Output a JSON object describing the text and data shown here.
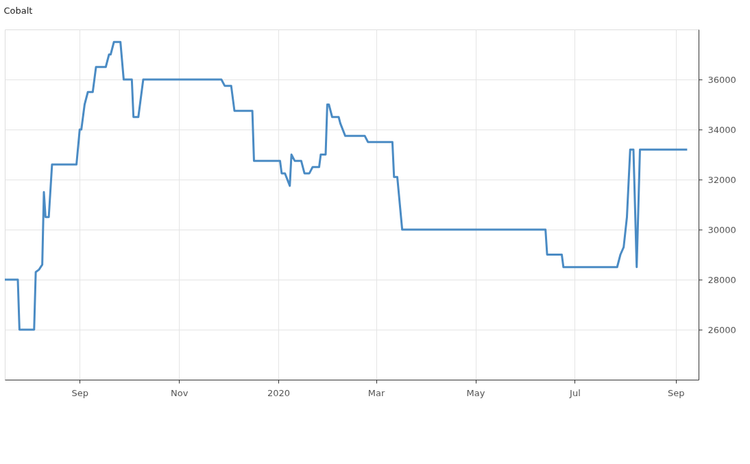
{
  "chart_data": {
    "type": "line",
    "title": "Cobalt",
    "x": [
      "2019-07-17",
      "2019-07-25",
      "2019-07-26",
      "2019-08-04",
      "2019-08-05",
      "2019-08-07",
      "2019-08-09",
      "2019-08-10",
      "2019-08-11",
      "2019-08-13",
      "2019-08-15",
      "2019-08-30",
      "2019-09-01",
      "2019-09-02",
      "2019-09-04",
      "2019-09-06",
      "2019-09-09",
      "2019-09-11",
      "2019-09-17",
      "2019-09-19",
      "2019-09-20",
      "2019-09-22",
      "2019-09-26",
      "2019-09-28",
      "2019-10-03",
      "2019-10-04",
      "2019-10-07",
      "2019-10-10",
      "2019-11-27",
      "2019-11-29",
      "2019-12-03",
      "2019-12-05",
      "2019-12-16",
      "2019-12-17",
      "2020-01-02",
      "2020-01-03",
      "2020-01-05",
      "2020-01-08",
      "2020-01-09",
      "2020-01-11",
      "2020-01-15",
      "2020-01-17",
      "2020-01-20",
      "2020-01-22",
      "2020-01-26",
      "2020-01-27",
      "2020-01-30",
      "2020-01-31",
      "2020-02-01",
      "2020-02-03",
      "2020-02-07",
      "2020-02-08",
      "2020-02-11",
      "2020-02-23",
      "2020-02-25",
      "2020-03-11",
      "2020-03-12",
      "2020-03-14",
      "2020-03-17",
      "2020-06-13",
      "2020-06-14",
      "2020-06-23",
      "2020-06-24",
      "2020-07-27",
      "2020-07-29",
      "2020-07-31",
      "2020-08-02",
      "2020-08-04",
      "2020-08-06",
      "2020-08-08",
      "2020-08-10",
      "2020-09-08"
    ],
    "series": [
      {
        "color": "#4a8bc4",
        "values": [
          28000,
          28000,
          26000,
          26000,
          28300,
          28400,
          28600,
          31500,
          30500,
          30500,
          32600,
          32600,
          34000,
          34000,
          35000,
          35500,
          35500,
          36500,
          36500,
          37000,
          37000,
          37500,
          37500,
          36000,
          36000,
          34500,
          34500,
          36000,
          36000,
          35750,
          35750,
          34750,
          34750,
          32750,
          32750,
          32250,
          32250,
          31750,
          33000,
          32750,
          32750,
          32250,
          32250,
          32500,
          32500,
          33000,
          33000,
          35000,
          35000,
          34500,
          34500,
          34250,
          33750,
          33750,
          33500,
          33500,
          32100,
          32100,
          30000,
          30000,
          29000,
          29000,
          28500,
          28500,
          29000,
          29300,
          30500,
          33200,
          33200,
          28500,
          33200,
          33200
        ]
      }
    ],
    "xlim": [
      "2019-07-17",
      "2020-09-15"
    ],
    "xticks": [
      {
        "value": "2019-09-01",
        "label": "Sep"
      },
      {
        "value": "2019-11-01",
        "label": "Nov"
      },
      {
        "value": "2020-01-01",
        "label": "2020"
      },
      {
        "value": "2020-03-01",
        "label": "Mar"
      },
      {
        "value": "2020-05-01",
        "label": "May"
      },
      {
        "value": "2020-07-01",
        "label": "Jul"
      },
      {
        "value": "2020-09-01",
        "label": "Sep"
      }
    ],
    "ylim": [
      24000,
      38000
    ],
    "yticks": [
      26000,
      28000,
      30000,
      32000,
      34000,
      36000
    ],
    "grid": true,
    "marker": "none",
    "line_style": "solid"
  }
}
